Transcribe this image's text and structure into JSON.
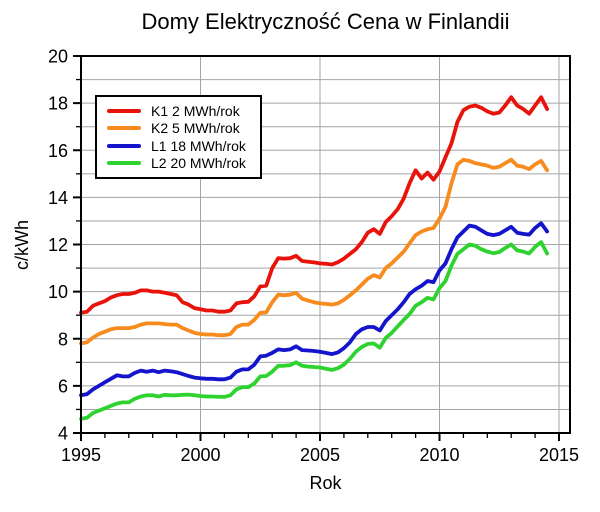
{
  "chart_data": {
    "type": "line",
    "title": "Domy Elektryczność Cena w Finlandii",
    "xlabel": "Rok",
    "ylabel": "c/kWh",
    "xlim": [
      1995,
      2015.46
    ],
    "ylim": [
      4,
      20
    ],
    "x_major_ticks": [
      1995,
      2000,
      2005,
      2010,
      2015
    ],
    "x_minor_step": 1,
    "y_major_ticks": [
      4,
      6,
      8,
      10,
      12,
      14,
      16,
      18,
      20
    ],
    "y_minor_step": 1,
    "grid": {
      "horizontal_every": 1,
      "vertical_at": [
        2000,
        2005,
        2010,
        2015
      ],
      "color": "#a4a4a4"
    },
    "legend_position": "upper-left",
    "x": [
      1995,
      1995.25,
      1995.5,
      1995.75,
      1996,
      1996.25,
      1996.5,
      1996.75,
      1997,
      1997.25,
      1997.5,
      1997.75,
      1998,
      1998.25,
      1998.5,
      1998.75,
      1999,
      1999.25,
      1999.5,
      1999.75,
      2000,
      2000.25,
      2000.5,
      2000.75,
      2001,
      2001.25,
      2001.5,
      2001.75,
      2002,
      2002.25,
      2002.5,
      2002.75,
      2003,
      2003.25,
      2003.5,
      2003.75,
      2004,
      2004.25,
      2004.5,
      2004.75,
      2005,
      2005.25,
      2005.5,
      2005.75,
      2006,
      2006.25,
      2006.5,
      2006.75,
      2007,
      2007.25,
      2007.5,
      2007.75,
      2008,
      2008.25,
      2008.5,
      2008.75,
      2009,
      2009.25,
      2009.5,
      2009.75,
      2010,
      2010.25,
      2010.5,
      2010.75,
      2011,
      2011.25,
      2011.5,
      2011.75,
      2012,
      2012.25,
      2012.5,
      2012.75,
      2013,
      2013.25,
      2013.5,
      2013.75,
      2014,
      2014.25,
      2014.5
    ],
    "series": [
      {
        "name": "K1 2 MWh/rok",
        "color": "#e8130b",
        "values": [
          9.1,
          9.15,
          9.4,
          9.5,
          9.6,
          9.75,
          9.85,
          9.9,
          9.9,
          9.95,
          10.05,
          10.05,
          10.0,
          10.0,
          9.95,
          9.9,
          9.85,
          9.55,
          9.45,
          9.3,
          9.25,
          9.2,
          9.2,
          9.15,
          9.15,
          9.2,
          9.5,
          9.55,
          9.57,
          9.8,
          10.22,
          10.25,
          11.0,
          11.42,
          11.4,
          11.42,
          11.52,
          11.3,
          11.27,
          11.24,
          11.2,
          11.18,
          11.15,
          11.25,
          11.4,
          11.6,
          11.8,
          12.1,
          12.5,
          12.65,
          12.45,
          12.95,
          13.2,
          13.5,
          13.95,
          14.6,
          15.15,
          14.8,
          15.05,
          14.75,
          15.1,
          15.7,
          16.3,
          17.2,
          17.7,
          17.85,
          17.9,
          17.8,
          17.65,
          17.55,
          17.6,
          17.9,
          18.25,
          17.9,
          17.75,
          17.55,
          17.9,
          18.25,
          17.75
        ]
      },
      {
        "name": "K2 5 MWh/rok",
        "color": "#f78b1d",
        "values": [
          7.8,
          7.85,
          8.05,
          8.2,
          8.3,
          8.4,
          8.45,
          8.45,
          8.45,
          8.5,
          8.6,
          8.65,
          8.65,
          8.65,
          8.62,
          8.6,
          8.6,
          8.45,
          8.35,
          8.25,
          8.2,
          8.18,
          8.18,
          8.15,
          8.15,
          8.2,
          8.5,
          8.6,
          8.6,
          8.8,
          9.1,
          9.12,
          9.55,
          9.87,
          9.85,
          9.87,
          9.95,
          9.7,
          9.62,
          9.55,
          9.5,
          9.48,
          9.45,
          9.5,
          9.65,
          9.85,
          10.05,
          10.3,
          10.55,
          10.7,
          10.6,
          11.0,
          11.2,
          11.45,
          11.7,
          12.05,
          12.4,
          12.55,
          12.65,
          12.7,
          13.1,
          13.6,
          14.6,
          15.4,
          15.6,
          15.55,
          15.45,
          15.4,
          15.35,
          15.25,
          15.3,
          15.45,
          15.6,
          15.35,
          15.3,
          15.2,
          15.4,
          15.55,
          15.15
        ]
      },
      {
        "name": "L1 18 MWh/rok",
        "color": "#1414cc",
        "values": [
          5.6,
          5.65,
          5.85,
          6.0,
          6.15,
          6.3,
          6.45,
          6.4,
          6.4,
          6.55,
          6.65,
          6.6,
          6.65,
          6.58,
          6.65,
          6.62,
          6.58,
          6.5,
          6.42,
          6.35,
          6.32,
          6.3,
          6.3,
          6.28,
          6.28,
          6.35,
          6.6,
          6.7,
          6.7,
          6.9,
          7.25,
          7.28,
          7.4,
          7.55,
          7.52,
          7.55,
          7.68,
          7.52,
          7.5,
          7.48,
          7.45,
          7.4,
          7.35,
          7.42,
          7.6,
          7.85,
          8.2,
          8.4,
          8.5,
          8.5,
          8.35,
          8.75,
          9.0,
          9.25,
          9.55,
          9.9,
          10.1,
          10.25,
          10.45,
          10.4,
          10.9,
          11.2,
          11.8,
          12.3,
          12.55,
          12.8,
          12.75,
          12.6,
          12.45,
          12.4,
          12.45,
          12.6,
          12.75,
          12.5,
          12.45,
          12.42,
          12.7,
          12.9,
          12.55
        ]
      },
      {
        "name": "L2 20 MWh/rok",
        "color": "#2fd32f",
        "values": [
          4.6,
          4.65,
          4.85,
          4.95,
          5.05,
          5.15,
          5.25,
          5.3,
          5.3,
          5.45,
          5.55,
          5.6,
          5.6,
          5.55,
          5.62,
          5.6,
          5.6,
          5.62,
          5.63,
          5.6,
          5.57,
          5.55,
          5.55,
          5.53,
          5.53,
          5.6,
          5.85,
          5.95,
          5.95,
          6.1,
          6.4,
          6.42,
          6.6,
          6.85,
          6.85,
          6.88,
          7.0,
          6.85,
          6.82,
          6.8,
          6.78,
          6.73,
          6.68,
          6.75,
          6.9,
          7.15,
          7.45,
          7.65,
          7.78,
          7.8,
          7.62,
          8.03,
          8.25,
          8.53,
          8.8,
          9.05,
          9.4,
          9.55,
          9.74,
          9.67,
          10.15,
          10.45,
          11.1,
          11.6,
          11.8,
          12.0,
          11.95,
          11.8,
          11.7,
          11.63,
          11.68,
          11.85,
          12.0,
          11.75,
          11.7,
          11.62,
          11.9,
          12.1,
          11.62
        ]
      }
    ]
  }
}
